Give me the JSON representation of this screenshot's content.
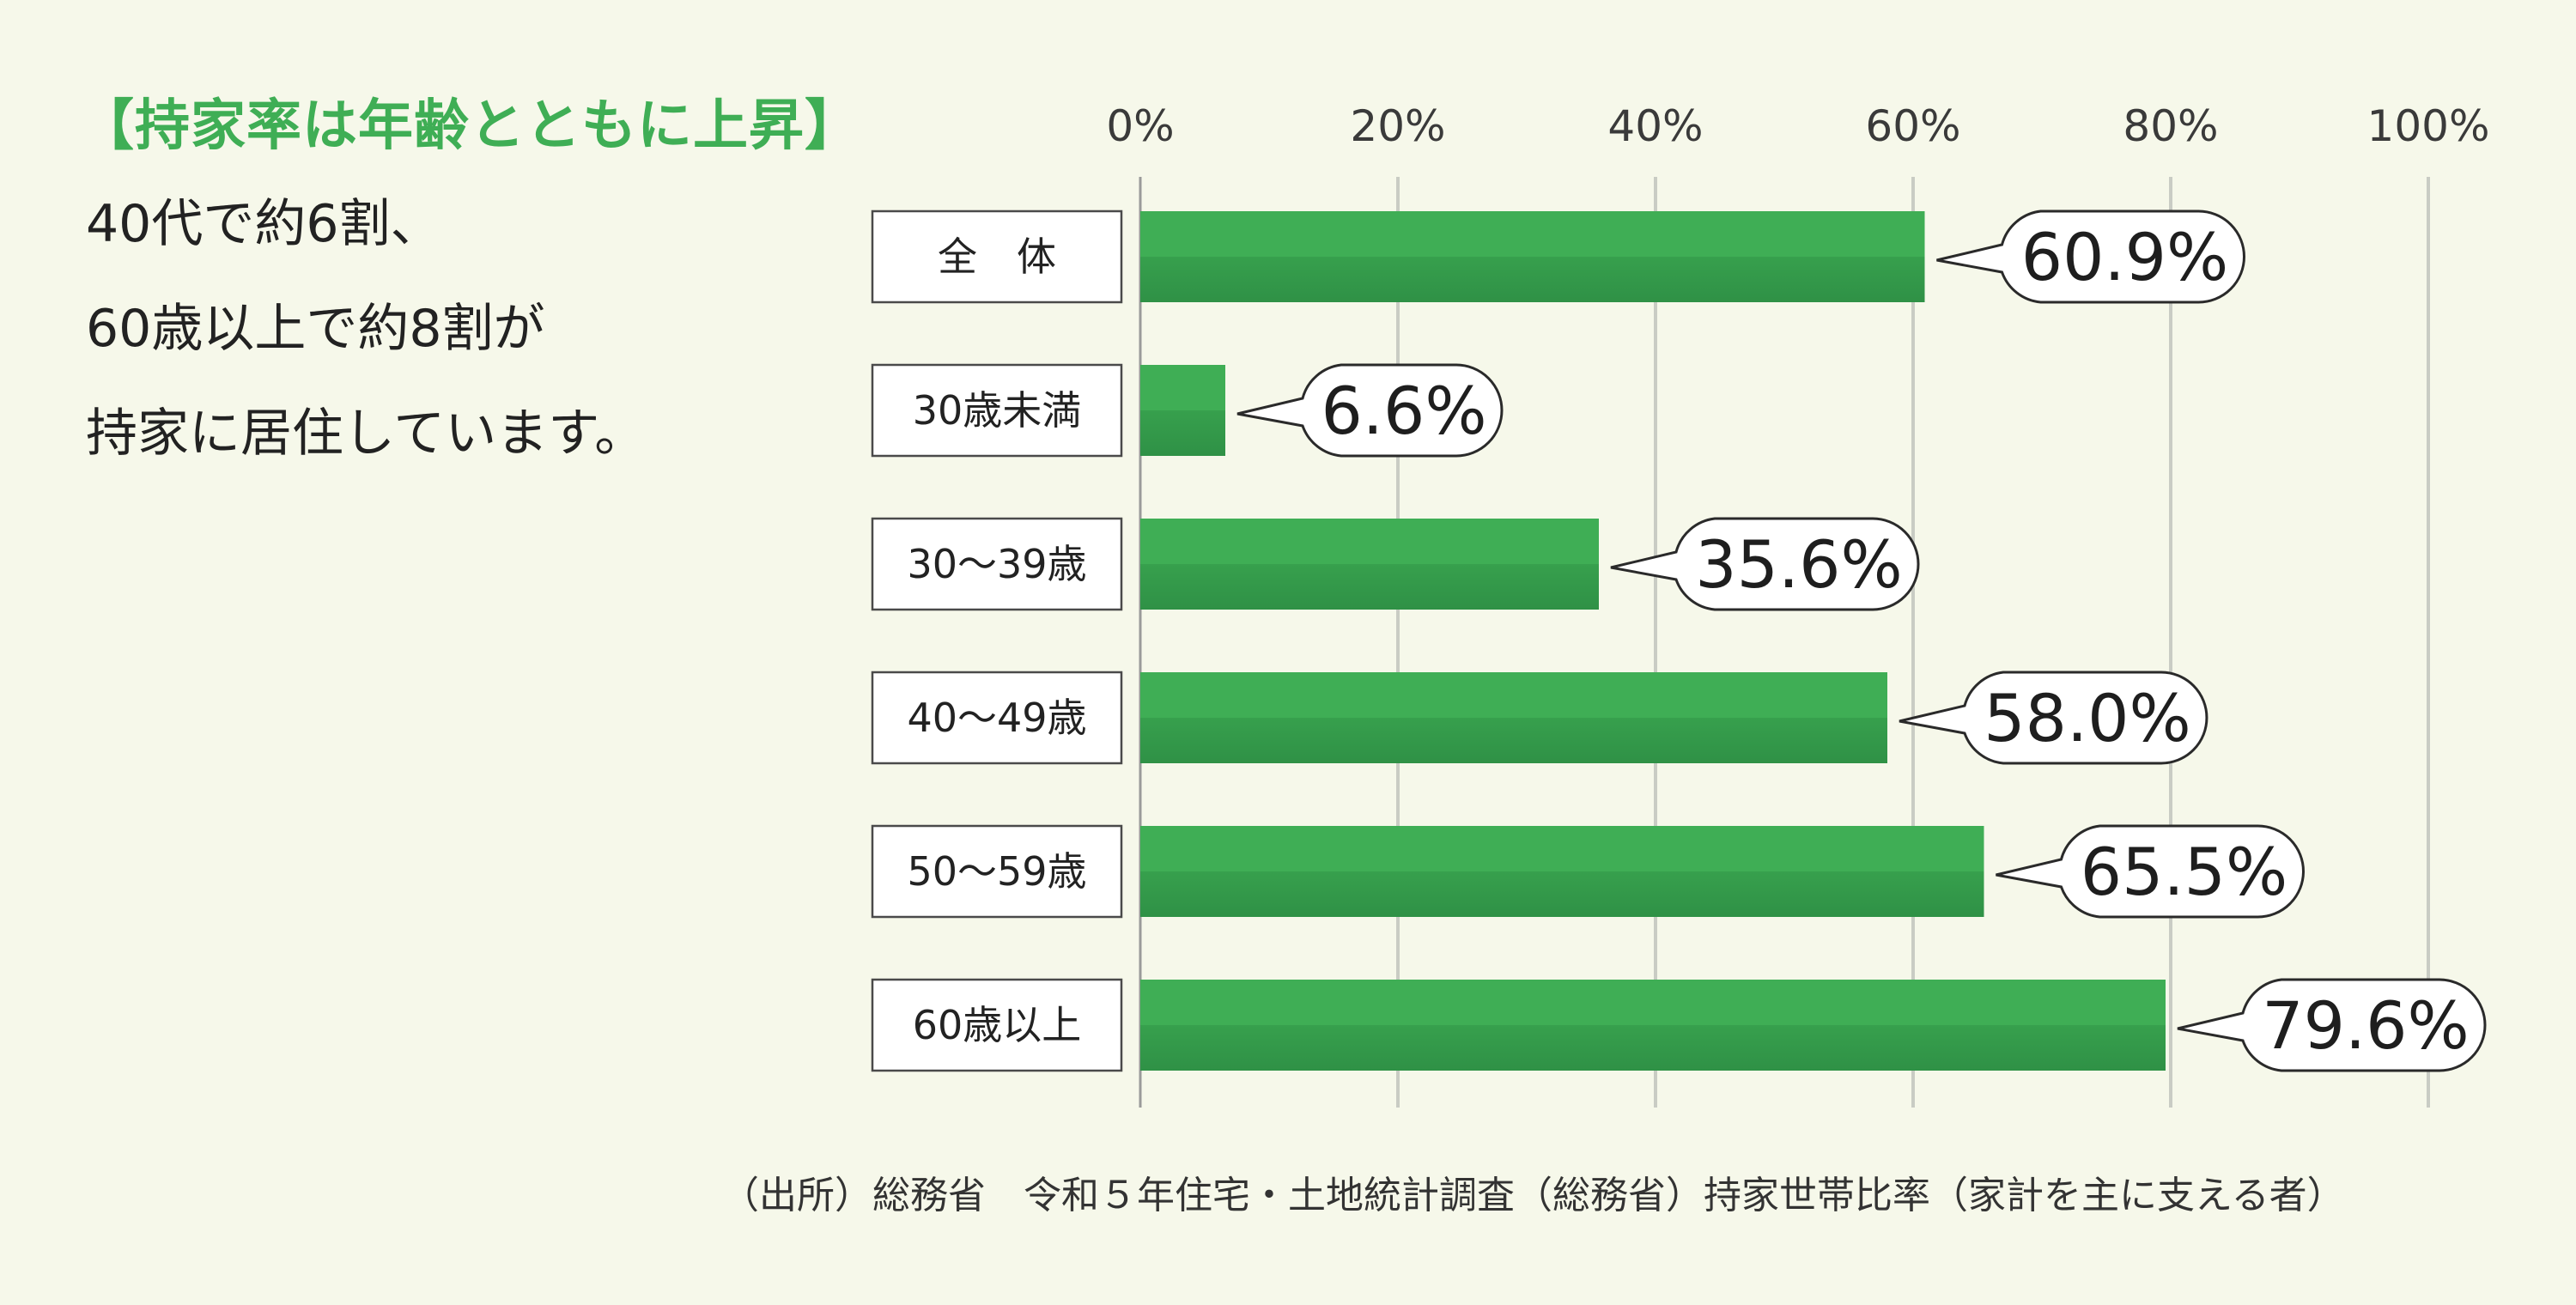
{
  "headline": "【持家率は年齢とともに上昇】",
  "lead": [
    "40代で約6割、",
    "60歳以上で約8割が",
    "持家に居住しています。"
  ],
  "source": "（出所）総務省　令和５年住宅・土地統計調査（総務省）持家世帯比率（家計を主に支える者）",
  "colors": {
    "bar": "#3fae55",
    "bar_dark": "#2f9146",
    "headline": "#3fae55"
  },
  "chart_data": {
    "type": "bar",
    "orientation": "horizontal",
    "categories": [
      "全　体",
      "30歳未満",
      "30～39歳",
      "40～49歳",
      "50～59歳",
      "60歳以上"
    ],
    "values": [
      60.9,
      6.6,
      35.6,
      58.0,
      65.5,
      79.6
    ],
    "value_labels": [
      "60.9%",
      "6.6%",
      "35.6%",
      "58.0%",
      "65.5%",
      "79.6%"
    ],
    "xlim": [
      0,
      100
    ],
    "ticks": [
      0,
      20,
      40,
      60,
      80,
      100
    ],
    "tick_labels": [
      "0%",
      "20%",
      "40%",
      "60%",
      "80%",
      "100%"
    ],
    "grid": true,
    "tick_position": "top"
  }
}
